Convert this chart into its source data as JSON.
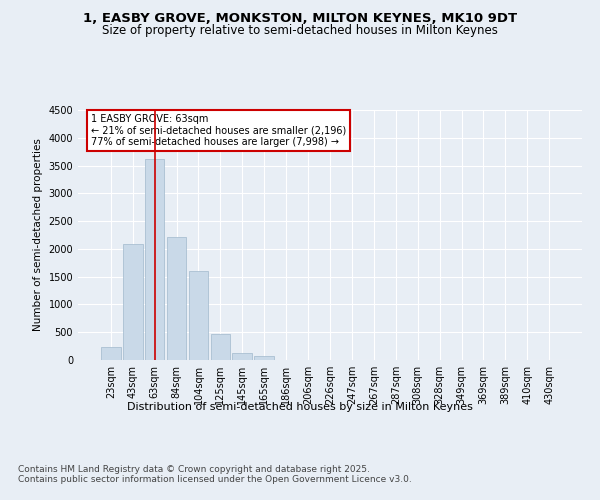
{
  "title": "1, EASBY GROVE, MONKSTON, MILTON KEYNES, MK10 9DT",
  "subtitle": "Size of property relative to semi-detached houses in Milton Keynes",
  "xlabel": "Distribution of semi-detached houses by size in Milton Keynes",
  "ylabel": "Number of semi-detached properties",
  "categories": [
    "23sqm",
    "43sqm",
    "63sqm",
    "84sqm",
    "104sqm",
    "125sqm",
    "145sqm",
    "165sqm",
    "186sqm",
    "206sqm",
    "226sqm",
    "247sqm",
    "267sqm",
    "287sqm",
    "308sqm",
    "328sqm",
    "349sqm",
    "369sqm",
    "389sqm",
    "410sqm",
    "430sqm"
  ],
  "values": [
    230,
    2080,
    3620,
    2220,
    1600,
    460,
    120,
    70,
    0,
    0,
    0,
    0,
    0,
    0,
    0,
    0,
    0,
    0,
    0,
    0,
    0
  ],
  "bar_color": "#c9d9e8",
  "bar_edge_color": "#a0b8cc",
  "highlight_bar_index": 2,
  "annotation_title": "1 EASBY GROVE: 63sqm",
  "annotation_line1": "← 21% of semi-detached houses are smaller (2,196)",
  "annotation_line2": "77% of semi-detached houses are larger (7,998) →",
  "annotation_box_color": "#ffffff",
  "annotation_box_edge_color": "#cc0000",
  "vline_color": "#cc0000",
  "ylim": [
    0,
    4500
  ],
  "yticks": [
    0,
    500,
    1000,
    1500,
    2000,
    2500,
    3000,
    3500,
    4000,
    4500
  ],
  "bg_color": "#e8eef5",
  "plot_bg_color": "#e8eef5",
  "grid_color": "#ffffff",
  "footer_line1": "Contains HM Land Registry data © Crown copyright and database right 2025.",
  "footer_line2": "Contains public sector information licensed under the Open Government Licence v3.0.",
  "title_fontsize": 9.5,
  "subtitle_fontsize": 8.5,
  "axis_fontsize": 7,
  "ylabel_fontsize": 7.5,
  "xlabel_fontsize": 8,
  "annotation_fontsize": 7,
  "footer_fontsize": 6.5
}
